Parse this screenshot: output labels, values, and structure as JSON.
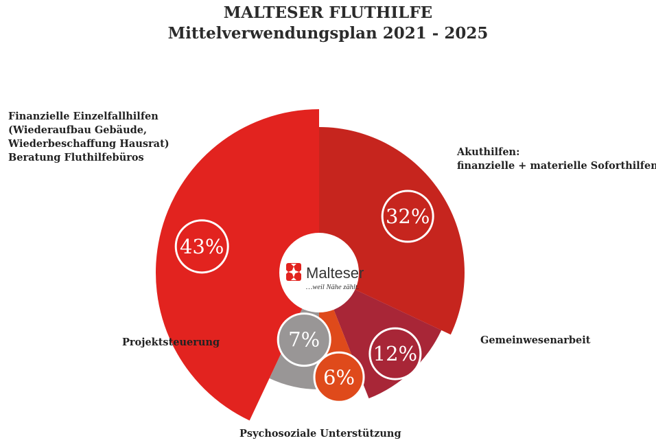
{
  "header": {
    "title": "MALTESER FLUTHILFE",
    "subtitle": "Mittelverwendungsplan 2021 - 2025"
  },
  "logo": {
    "brand": "Malteser",
    "tagline": "…weil Nähe zählt."
  },
  "colors": {
    "finanzielle": "#e2231f",
    "akut": "#c6251e",
    "gemeinwesen": "#a82637",
    "psychosozial": "#df4a1b",
    "projekt": "#999696"
  },
  "chart_data": {
    "type": "pie",
    "title": "MALTESER FLUTHILFE",
    "subtitle": "Mittelverwendungsplan 2021 - 2025",
    "slices": [
      {
        "label": "Akuthilfen: finanzielle + materielle Soforthilfen",
        "value": 32,
        "display": "32%",
        "color": "#c6251e"
      },
      {
        "label": "Gemeinwesenarbeit",
        "value": 12,
        "display": "12%",
        "color": "#a82637"
      },
      {
        "label": "Psychosoziale Unterstützung",
        "value": 6,
        "display": "6%",
        "color": "#df4a1b"
      },
      {
        "label": "Projektsteuerung",
        "value": 7,
        "display": "7%",
        "color": "#999696"
      },
      {
        "label": "Finanzielle Einzelfallhilfen (Wiederaufbau Gebäude, Wiederbeschaffung Hausrat) Beratung Fluthilfebüros",
        "value": 43,
        "display": "43%",
        "color": "#e2231f"
      }
    ]
  },
  "labels": {
    "finanzielle": [
      "Finanzielle Einzelfallhilfen",
      "(Wiederaufbau Gebäude,",
      "Wiederbeschaffung Hausrat)",
      "Beratung Fluthilfebüros"
    ],
    "akut": [
      "Akuthilfen:",
      "finanzielle + materielle Soforthilfen"
    ],
    "gemeinwesen": "Gemeinwesenarbeit",
    "projekt": "Projektsteuerung",
    "psychosozial": "Psychosoziale Unterstützung"
  }
}
